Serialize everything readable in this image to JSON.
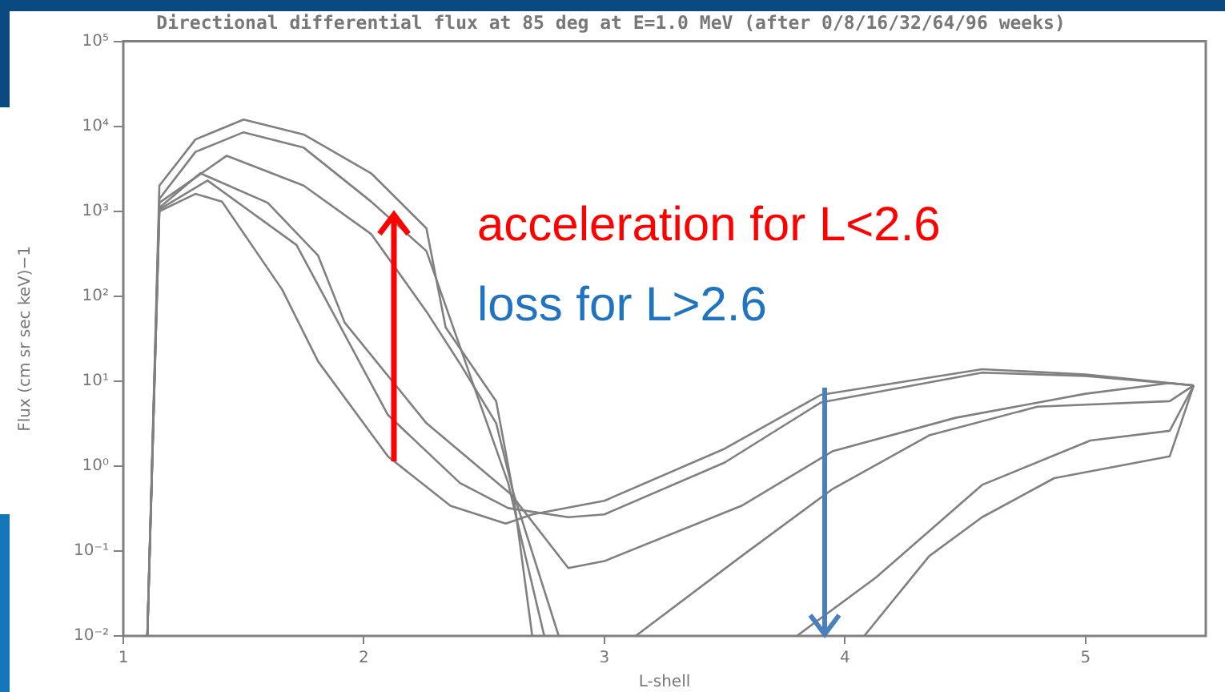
{
  "chart_data": {
    "type": "line",
    "title": "Directional differential flux at 85 deg at E=1.0 MeV (after 0/8/16/32/64/96 weeks)",
    "xlabel": "L-shell",
    "ylabel": "Flux (cm sr sec keV)−1",
    "log": "y",
    "xlim": [
      1,
      5.5
    ],
    "xticks": [
      1,
      2,
      3,
      4,
      5
    ],
    "ylim": [
      0.01,
      100000
    ],
    "yticks": [
      {
        "value": 0.01,
        "label": "10⁻²"
      },
      {
        "value": 0.1,
        "label": "10⁻¹"
      },
      {
        "value": 1,
        "label": "10⁰"
      },
      {
        "value": 10,
        "label": "10¹"
      },
      {
        "value": 100,
        "label": "10²"
      },
      {
        "value": 1000,
        "label": "10³"
      },
      {
        "value": 10000,
        "label": "10⁴"
      },
      {
        "value": 100000,
        "label": "10⁵"
      }
    ],
    "grid": false,
    "legend": false,
    "marker": "none",
    "line_style": "solid",
    "annotations": [
      "acceleration for L<2.6",
      "loss for L>2.6"
    ],
    "series": [
      {
        "color": "#808080",
        "x": [
          1.1,
          1.15,
          1.3,
          1.5,
          1.75,
          2.03,
          2.26,
          2.34,
          2.55,
          2.62,
          2.81,
          3.4,
          4.08,
          4.35,
          4.57,
          4.87,
          5.35,
          5.45
        ],
        "values": [
          0.01,
          2000,
          7000,
          12000,
          8000,
          2800,
          630,
          43,
          5.8,
          0.5,
          0.01,
          null,
          0.01,
          0.087,
          0.25,
          0.72,
          1.3,
          8.9
        ]
      },
      {
        "color": "#808080",
        "x": [
          1.1,
          1.15,
          1.3,
          1.5,
          1.75,
          2.03,
          2.26,
          2.45,
          2.6,
          2.75,
          3.3,
          3.8,
          4.13,
          4.57,
          5.02,
          5.35,
          5.45
        ],
        "values": [
          0.01,
          1400,
          5000,
          8500,
          5600,
          1300,
          340,
          10,
          0.63,
          0.01,
          null,
          0.01,
          0.049,
          0.6,
          2.0,
          2.6,
          8.9
        ]
      },
      {
        "color": "#808080",
        "x": [
          1.1,
          1.15,
          1.43,
          1.75,
          2.03,
          2.26,
          2.4,
          2.55,
          2.62,
          2.7,
          2.9,
          3.13,
          3.57,
          3.95,
          4.35,
          4.8,
          5.35,
          5.45
        ],
        "values": [
          0.01,
          1260,
          4500,
          2000,
          540,
          66,
          16,
          3.2,
          0.5,
          0.01,
          null,
          0.01,
          0.087,
          0.54,
          2.3,
          5.0,
          5.8,
          8.9
        ]
      },
      {
        "color": "#808080",
        "x": [
          1.1,
          1.15,
          1.32,
          1.6,
          1.81,
          1.92,
          2.26,
          2.61,
          2.85,
          3.0,
          3.57,
          3.95,
          4.46,
          5.0,
          5.35,
          5.45
        ],
        "values": [
          0.01,
          1100,
          2800,
          1260,
          300,
          49,
          3.2,
          0.47,
          0.063,
          0.076,
          0.34,
          1.5,
          3.7,
          7.1,
          9.5,
          8.9
        ]
      },
      {
        "color": "#808080",
        "x": [
          1.1,
          1.15,
          1.35,
          1.72,
          2.1,
          2.4,
          2.6,
          2.85,
          3.0,
          3.5,
          3.9,
          4.57,
          5.0,
          5.45
        ],
        "values": [
          0.01,
          1050,
          2300,
          400,
          4.0,
          0.63,
          0.32,
          0.25,
          0.27,
          1.1,
          5.6,
          12.6,
          11.5,
          8.9
        ]
      },
      {
        "color": "#808080",
        "x": [
          1.1,
          1.15,
          1.3,
          1.41,
          1.66,
          1.81,
          2.1,
          2.36,
          2.59,
          2.7,
          3.0,
          3.5,
          3.9,
          4.57,
          5.0,
          5.45
        ],
        "values": [
          0.01,
          1000,
          1600,
          1300,
          120,
          17,
          1.3,
          0.34,
          0.21,
          0.27,
          0.39,
          1.6,
          6.9,
          13.8,
          12,
          8.9
        ]
      }
    ]
  }
}
